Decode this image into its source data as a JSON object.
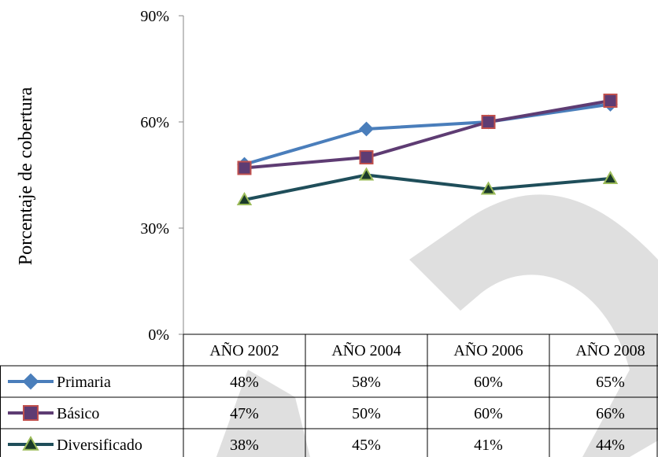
{
  "chart_data": {
    "type": "line",
    "title": "",
    "xlabel": "",
    "ylabel": "Porcentaje de cobertura",
    "ylim": [
      0,
      90
    ],
    "yticks": [
      "0%",
      "30%",
      "60%",
      "90%"
    ],
    "ytick_values": [
      0,
      30,
      60,
      90
    ],
    "categories": [
      "AÑO 2002",
      "AÑO 2004",
      "AÑO 2006",
      "AÑO 2008"
    ],
    "grid": false,
    "legend": "data-table",
    "series": [
      {
        "name": "Primaria",
        "values": [
          48,
          58,
          60,
          65
        ],
        "labels": [
          "48%",
          "58%",
          "60%",
          "65%"
        ],
        "color": "#4a7ebb",
        "marker": "diamond",
        "marker_fill": "#4a7ebb",
        "marker_stroke": "#4a7ebb"
      },
      {
        "name": "Básico",
        "values": [
          47,
          50,
          60,
          66
        ],
        "labels": [
          "47%",
          "50%",
          "60%",
          "66%"
        ],
        "color": "#5e3c73",
        "marker": "square",
        "marker_fill": "#5e3c73",
        "marker_stroke": "#c0504d"
      },
      {
        "name": "Diversificado",
        "values": [
          38,
          45,
          41,
          44
        ],
        "labels": [
          "38%",
          "45%",
          "41%",
          "44%"
        ],
        "color": "#1f4e5a",
        "marker": "triangle",
        "marker_fill": "#1a3a2a",
        "marker_stroke": "#9bbb59"
      }
    ]
  },
  "watermark": {
    "text": "D",
    "color": "#d9d9d9"
  }
}
